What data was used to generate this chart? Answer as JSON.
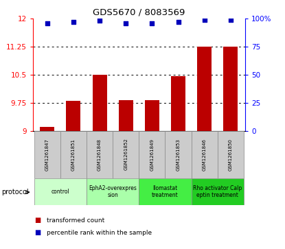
{
  "title": "GDS5670 / 8083569",
  "samples": [
    "GSM1261847",
    "GSM1261851",
    "GSM1261848",
    "GSM1261852",
    "GSM1261849",
    "GSM1261853",
    "GSM1261846",
    "GSM1261850"
  ],
  "bar_values": [
    9.1,
    9.8,
    10.5,
    9.82,
    9.82,
    10.47,
    11.25,
    11.25
  ],
  "percentile_values": [
    96,
    97,
    98,
    96,
    96,
    97,
    99,
    99
  ],
  "ylim_left": [
    9.0,
    12.0
  ],
  "ylim_right": [
    0,
    100
  ],
  "yticks_left": [
    9.0,
    9.75,
    10.5,
    11.25,
    12.0
  ],
  "ytick_labels_left": [
    "9",
    "9.75",
    "10.5",
    "11.25",
    "12"
  ],
  "yticks_right": [
    0,
    25,
    50,
    75,
    100
  ],
  "ytick_labels_right": [
    "0",
    "25",
    "50",
    "75",
    "100%"
  ],
  "bar_color": "#bb0000",
  "dot_color": "#0000bb",
  "hgrid_values": [
    9.75,
    10.5,
    11.25
  ],
  "protocols": [
    {
      "label": "control",
      "group": [
        0,
        1
      ],
      "color": "#ccffcc"
    },
    {
      "label": "EphA2-overexpres\nsion",
      "group": [
        2,
        3
      ],
      "color": "#aaffaa"
    },
    {
      "label": "Ilomastat\ntreatment",
      "group": [
        4,
        5
      ],
      "color": "#44ee44"
    },
    {
      "label": "Rho activator Calp\neptin treatment",
      "group": [
        6,
        7
      ],
      "color": "#22cc22"
    }
  ],
  "protocol_label": "protocol",
  "legend_items": [
    {
      "label": "transformed count",
      "color": "#bb0000"
    },
    {
      "label": "percentile rank within the sample",
      "color": "#0000bb"
    }
  ],
  "sample_box_color": "#cccccc",
  "sample_box_edge": "#888888"
}
